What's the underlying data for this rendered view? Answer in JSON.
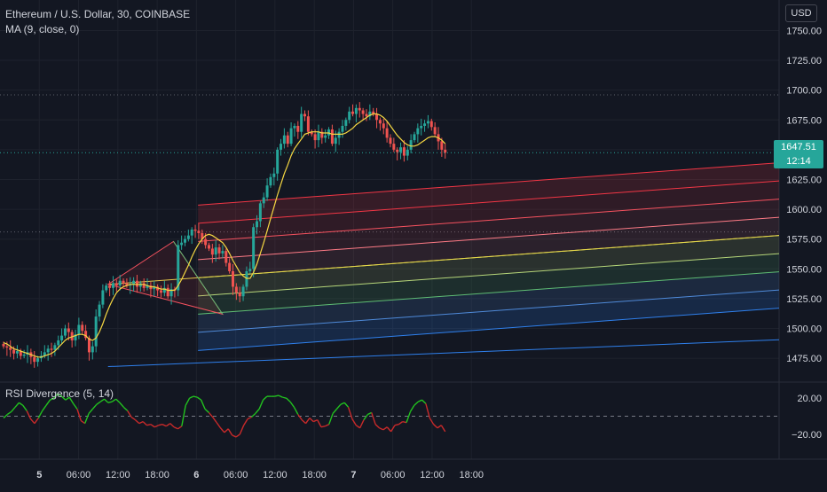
{
  "chart_data": [
    {
      "type": "candlestick",
      "title": "Ethereum / U.S. Dollar, 30, COINBASE",
      "indicator": "MA (9, close, 0)",
      "currency": "USD",
      "ylim": [
        1455,
        1760
      ],
      "y_ticks": [
        1475,
        1500,
        1525,
        1550,
        1575,
        1600,
        1625,
        1650,
        1675,
        1700,
        1725,
        1750
      ],
      "y_tick_labels": [
        "1475.00",
        "1500.00",
        "1525.00",
        "1550.00",
        "1575.00",
        "1600.00",
        "1625.00",
        "1650.00",
        "1675.00",
        "1700.00",
        "1725.00",
        "1750.00"
      ],
      "x_range_hours": [
        -6,
        113
      ],
      "x_ticks": [
        {
          "label": "5",
          "hour": 0,
          "bold": true
        },
        {
          "label": "06:00",
          "hour": 6
        },
        {
          "label": "12:00",
          "hour": 12
        },
        {
          "label": "18:00",
          "hour": 18
        },
        {
          "label": "6",
          "hour": 24,
          "bold": true
        },
        {
          "label": "06:00",
          "hour": 30
        },
        {
          "label": "12:00",
          "hour": 36
        },
        {
          "label": "18:00",
          "hour": 42
        },
        {
          "label": "7",
          "hour": 48,
          "bold": true
        },
        {
          "label": "06:00",
          "hour": 54
        },
        {
          "label": "12:00",
          "hour": 60
        },
        {
          "label": "18:00",
          "hour": 66
        }
      ],
      "last_price": "1647.51",
      "countdown": "12:14",
      "last_value": 1647.51,
      "reference_levels": [
        1696,
        1581
      ],
      "series": [
        {
          "name": "price",
          "values": [
            1485,
            1484,
            1482,
            1479,
            1481,
            1477,
            1478,
            1480,
            1476,
            1472,
            1475,
            1477,
            1480,
            1483,
            1482,
            1486,
            1490,
            1494,
            1500,
            1497,
            1490,
            1495,
            1503,
            1498,
            1492,
            1480,
            1485,
            1510,
            1520,
            1532,
            1536,
            1534,
            1538,
            1536,
            1540,
            1538,
            1536,
            1537,
            1540,
            1535,
            1538,
            1534,
            1536,
            1533,
            1535,
            1532,
            1530,
            1534,
            1527,
            1533,
            1532,
            1570,
            1572,
            1575,
            1578,
            1583,
            1582,
            1580,
            1575,
            1570,
            1567,
            1562,
            1568,
            1563,
            1565,
            1555,
            1548,
            1535,
            1530,
            1527,
            1535,
            1548,
            1550,
            1585,
            1590,
            1605,
            1610,
            1620,
            1627,
            1630,
            1650,
            1655,
            1662,
            1655,
            1668,
            1670,
            1665,
            1680,
            1678,
            1665,
            1663,
            1658,
            1665,
            1660,
            1662,
            1667,
            1655,
            1660,
            1665,
            1670,
            1675,
            1682,
            1680,
            1685,
            1683,
            1680,
            1678,
            1682,
            1680,
            1675,
            1672,
            1668,
            1660,
            1655,
            1650,
            1648,
            1652,
            1645,
            1650,
            1658,
            1663,
            1668,
            1670,
            1672,
            1674,
            1669,
            1663,
            1657,
            1650,
            1647.51
          ]
        },
        {
          "name": "ma",
          "values": [
            1488,
            1487,
            1485,
            1483,
            1482,
            1481,
            1480,
            1479,
            1478,
            1477,
            1476,
            1476,
            1477,
            1478,
            1479,
            1481,
            1484,
            1487,
            1490,
            1492,
            1493,
            1494,
            1495,
            1495,
            1494,
            1491,
            1490,
            1492,
            1497,
            1504,
            1512,
            1519,
            1525,
            1530,
            1533,
            1535,
            1536,
            1537,
            1537,
            1537,
            1537,
            1537,
            1536,
            1535,
            1535,
            1534,
            1533,
            1533,
            1532,
            1532,
            1532,
            1536,
            1541,
            1547,
            1553,
            1560,
            1566,
            1571,
            1575,
            1578,
            1579,
            1578,
            1576,
            1574,
            1572,
            1568,
            1563,
            1557,
            1552,
            1547,
            1544,
            1542,
            1542,
            1547,
            1554,
            1563,
            1572,
            1582,
            1592,
            1602,
            1612,
            1621,
            1630,
            1637,
            1645,
            1651,
            1655,
            1659,
            1663,
            1664,
            1665,
            1665,
            1665,
            1664,
            1664,
            1664,
            1663,
            1663,
            1663,
            1663,
            1664,
            1666,
            1668,
            1671,
            1673,
            1675,
            1677,
            1679,
            1680,
            1680,
            1679,
            1677,
            1674,
            1670,
            1666,
            1662,
            1659,
            1656,
            1654,
            1653,
            1653,
            1654,
            1656,
            1658,
            1660,
            1661,
            1661,
            1660,
            1658,
            1655
          ]
        }
      ]
    },
    {
      "type": "line",
      "title": "RSI Divergence (5, 14)",
      "ylim": [
        -26,
        28
      ],
      "y_ticks": [
        20,
        -20
      ],
      "y_tick_labels": [
        "20.00",
        "−20.00"
      ],
      "zero_line": 0,
      "series": [
        {
          "name": "rsi",
          "values": [
            -2,
            2,
            5,
            10,
            15,
            12,
            6,
            -3,
            -8,
            -2,
            6,
            12,
            18,
            20,
            25,
            22,
            18,
            21,
            14,
            8,
            -5,
            -8,
            3,
            8,
            13,
            16,
            19,
            15,
            16,
            19,
            15,
            10,
            6,
            -1,
            -4,
            -8,
            -6,
            -10,
            -9,
            -12,
            -10,
            -9,
            -11,
            -8,
            -12,
            -14,
            -11,
            12,
            20,
            22,
            21,
            18,
            8,
            4,
            -1,
            -7,
            -13,
            -18,
            -14,
            -21,
            -23,
            -20,
            -10,
            -3,
            -1,
            3,
            8,
            18,
            22,
            22,
            22,
            23,
            21,
            20,
            16,
            10,
            2,
            -4,
            -8,
            -2,
            -6,
            -4,
            -12,
            -11,
            -9,
            3,
            8,
            13,
            15,
            10,
            -3,
            -10,
            -13,
            -4,
            2,
            4,
            -9,
            -13,
            -15,
            -12,
            -17,
            -10,
            -9,
            -6,
            -7,
            5,
            12,
            16,
            18,
            14,
            -2,
            -9,
            -13,
            -10,
            -17
          ]
        }
      ]
    }
  ]
}
